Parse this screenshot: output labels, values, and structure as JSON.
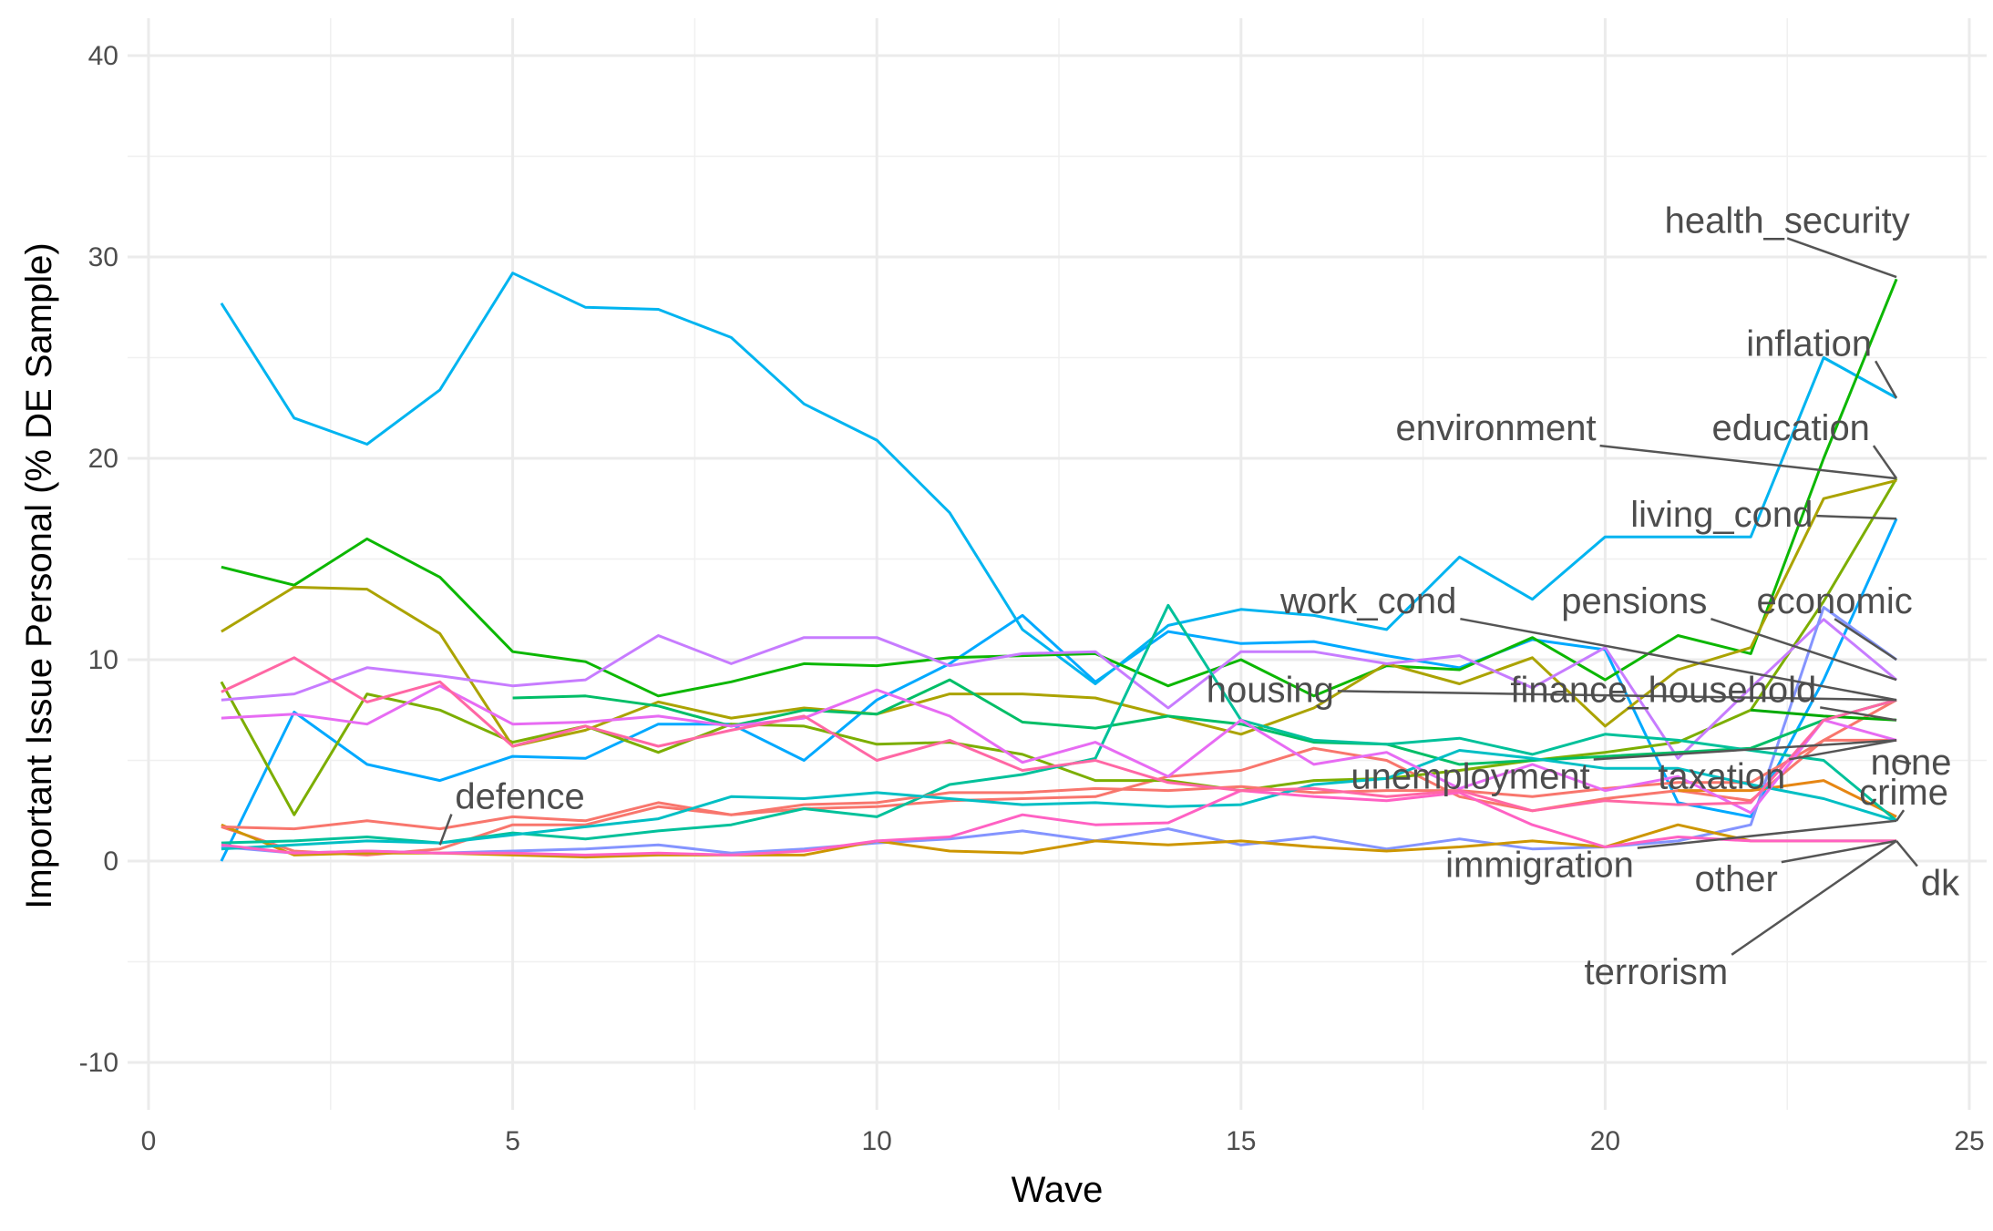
{
  "chart_data": {
    "type": "line",
    "title": "",
    "xlabel": "Wave",
    "ylabel": "Important Issue Personal (% DE Sample)",
    "xlim": [
      0,
      25
    ],
    "ylim": [
      -12,
      42
    ],
    "x_ticks": [
      0,
      5,
      10,
      15,
      20,
      25
    ],
    "y_ticks": [
      -10,
      0,
      10,
      20,
      30,
      40
    ],
    "grid": true,
    "legend": "none (direct labels)",
    "series": [
      {
        "name": "health_security",
        "color": "#00A9FF",
        "x": [
          24
        ],
        "y": [
          29
        ]
      },
      {
        "name": "inflation",
        "color": "#00BCD8",
        "x": [
          23,
          24
        ],
        "y": [
          25,
          23
        ]
      },
      {
        "name": "environment",
        "color": "#00B4F0",
        "x": [
          1,
          2,
          3,
          4,
          5,
          6,
          7,
          8,
          9,
          10,
          11,
          12,
          13,
          14,
          15,
          16,
          17,
          18,
          19,
          20,
          21,
          22,
          23,
          24
        ],
        "y": [
          27.7,
          22,
          20.7,
          23.4,
          29.2,
          27.5,
          27.4,
          26,
          22.7,
          20.9,
          17.3,
          11.5,
          8.8,
          11.7,
          12.5,
          12.2,
          11.5,
          15.1,
          13,
          16.1,
          16.1,
          16.1,
          25,
          23
        ]
      },
      {
        "name": "education",
        "color": "#7CAE00",
        "x": [
          1,
          2,
          3,
          4,
          5,
          6,
          7,
          8,
          9,
          10,
          11,
          12,
          13,
          14,
          15,
          16,
          17,
          18,
          19,
          20,
          21,
          22,
          23,
          24
        ],
        "y": [
          8.9,
          2.3,
          8.3,
          7.5,
          5.9,
          6.7,
          5.4,
          6.8,
          6.7,
          5.8,
          5.9,
          5.3,
          4,
          4,
          3.5,
          4,
          4.1,
          4.5,
          5,
          5.4,
          5.9,
          7.5,
          12.9,
          19
        ]
      },
      {
        "name": "living_cond",
        "color": "#0CB702",
        "x": [
          1,
          2,
          3,
          4,
          5,
          6,
          7,
          8,
          9,
          10,
          11,
          12,
          13,
          14,
          15,
          16,
          17,
          18,
          19,
          20,
          21,
          22,
          23,
          24
        ],
        "y": [
          14.6,
          13.7,
          16,
          14.1,
          10.4,
          9.9,
          8.2,
          8.9,
          9.8,
          9.7,
          10.1,
          10.2,
          10.3,
          8.7,
          10,
          8.2,
          9.7,
          9.5,
          11.1,
          9,
          11.2,
          10.3,
          20,
          28.9
        ]
      },
      {
        "name": "work_cond",
        "color": "#ABA300",
        "x": [
          1,
          2,
          3,
          4,
          5,
          6,
          7,
          8,
          9,
          10,
          11,
          12,
          13,
          14,
          15,
          16,
          17,
          18,
          19,
          20,
          21,
          22,
          23,
          24
        ],
        "y": [
          11.4,
          13.6,
          13.5,
          11.3,
          5.7,
          6.5,
          7.9,
          7.1,
          7.6,
          7.3,
          8.3,
          8.3,
          8.1,
          7.2,
          6.3,
          7.6,
          9.8,
          8.8,
          10.1,
          6.7,
          9.5,
          10.6,
          18,
          18.9
        ]
      },
      {
        "name": "pensions",
        "color": "#C77CFF",
        "x": [
          1,
          2,
          3,
          4,
          5,
          6,
          7,
          8,
          9,
          10,
          11,
          12,
          13,
          14,
          15,
          16,
          17,
          18,
          19,
          20,
          21,
          22,
          23,
          24
        ],
        "y": [
          8,
          8.3,
          9.6,
          9.2,
          8.7,
          9,
          11.2,
          9.8,
          11.1,
          11.1,
          9.7,
          10.3,
          10.4,
          7.6,
          10.4,
          10.4,
          9.8,
          10.2,
          8.6,
          10.6,
          5.1,
          8.6,
          12,
          9
        ]
      },
      {
        "name": "economic",
        "color": "#8494FF",
        "x": [
          1,
          2,
          3,
          4,
          5,
          6,
          7,
          8,
          9,
          10,
          11,
          12,
          13,
          14,
          15,
          16,
          17,
          18,
          19,
          20,
          21,
          22,
          23,
          24
        ],
        "y": [
          0.7,
          0.4,
          0.5,
          0.4,
          0.5,
          0.6,
          0.8,
          0.4,
          0.6,
          0.9,
          1.1,
          1.5,
          1,
          1.6,
          0.8,
          1.2,
          0.6,
          1.1,
          0.6,
          0.7,
          1,
          1.8,
          12.6,
          10
        ]
      },
      {
        "name": "housing",
        "color": "#00BE67",
        "x": [
          5,
          6,
          7,
          8,
          9,
          10,
          11,
          12,
          13,
          14,
          15,
          16,
          17,
          18,
          19,
          20,
          21,
          22,
          23,
          24
        ],
        "y": [
          8.1,
          8.2,
          7.7,
          6.7,
          7.5,
          7.3,
          9,
          6.9,
          6.6,
          7.2,
          6.8,
          5.9,
          5.8,
          4.8,
          5,
          5.2,
          5.4,
          5.6,
          7,
          8
        ]
      },
      {
        "name": "finance_household",
        "color": "#00A900",
        "x": [
          22,
          23,
          24
        ],
        "y": [
          7.5,
          7.2,
          7
        ]
      },
      {
        "name": "unemployment",
        "color": "#CD9600",
        "x": [
          1,
          2,
          3,
          4,
          5,
          6,
          7,
          8,
          9,
          10,
          11,
          12,
          13,
          14,
          15,
          16,
          17,
          18,
          19,
          20,
          21,
          22,
          23,
          24
        ],
        "y": [
          1.8,
          0.3,
          0.4,
          0.4,
          0.3,
          0.2,
          0.3,
          0.3,
          0.3,
          1,
          0.5,
          0.4,
          1,
          0.8,
          1,
          0.7,
          0.5,
          0.7,
          1,
          0.7,
          1.8,
          1,
          1,
          1
        ]
      },
      {
        "name": "taxation",
        "color": "#E68613",
        "x": [
          21,
          22,
          23,
          24
        ],
        "y": [
          3.5,
          3.5,
          4,
          2.2
        ]
      },
      {
        "name": "none",
        "color": "#00C19A",
        "x": [
          1,
          2,
          3,
          4,
          5,
          6,
          7,
          8,
          9,
          10,
          11,
          12,
          13,
          14,
          15,
          16,
          17,
          18,
          19,
          20,
          21,
          22,
          23,
          24
        ],
        "y": [
          0.9,
          1,
          1.2,
          0.9,
          1.4,
          1.1,
          1.5,
          1.8,
          2.6,
          2.2,
          3.8,
          4.3,
          5.1,
          12.7,
          7,
          6,
          5.8,
          6.1,
          5.3,
          6.3,
          6,
          5.5,
          5,
          2
        ]
      },
      {
        "name": "crime",
        "color": "#F8766D",
        "x": [
          1,
          2,
          3,
          4,
          5,
          6,
          7,
          8,
          9,
          10,
          11,
          12,
          13,
          14,
          15,
          16,
          17,
          18,
          19,
          20,
          21,
          22,
          23,
          24
        ],
        "y": [
          1.7,
          1.6,
          2,
          1.6,
          2.2,
          2,
          2.9,
          2.3,
          2.8,
          2.9,
          3.4,
          3.4,
          3.6,
          3.5,
          3.7,
          3.4,
          3.5,
          3.5,
          3.2,
          3.6,
          3.9,
          3.9,
          6,
          6
        ]
      },
      {
        "name": "immigration",
        "color": "#00BFC4",
        "x": [
          1,
          2,
          3,
          4,
          5,
          6,
          7,
          8,
          9,
          10,
          11,
          12,
          13,
          14,
          15,
          16,
          17,
          18,
          19,
          20,
          21,
          22,
          23,
          24
        ],
        "y": [
          0.6,
          0.8,
          1,
          0.9,
          1.3,
          1.7,
          2.1,
          3.2,
          3.1,
          3.4,
          3.1,
          2.8,
          2.9,
          2.7,
          2.8,
          3.8,
          4.1,
          5.5,
          5.1,
          4.6,
          4.6,
          3.8,
          3.1,
          2
        ]
      },
      {
        "name": "other",
        "color": "#FF61C3",
        "x": [
          1,
          2,
          3,
          4,
          5,
          6,
          7,
          8,
          9,
          10,
          11,
          12,
          13,
          14,
          15,
          16,
          17,
          18,
          19,
          20,
          21,
          22,
          23,
          24
        ],
        "y": [
          0.8,
          0.4,
          0.5,
          0.4,
          0.4,
          0.3,
          0.4,
          0.3,
          0.5,
          1,
          1.2,
          2.3,
          1.8,
          1.9,
          3.5,
          3.2,
          3,
          3.4,
          1.8,
          0.7,
          1.2,
          1,
          1,
          1
        ]
      },
      {
        "name": "dk",
        "color": "#E76BF3",
        "x": [
          1,
          2,
          3,
          4,
          5,
          6,
          7,
          8,
          9,
          10,
          11,
          12,
          13,
          14,
          15,
          16,
          17,
          18,
          19,
          20,
          21,
          22,
          23,
          24
        ],
        "y": [
          7.1,
          7.3,
          6.8,
          8.7,
          6.8,
          6.9,
          7.2,
          6.7,
          7.1,
          8.5,
          7.2,
          4.9,
          5.9,
          4.2,
          7,
          4.8,
          5.4,
          3.6,
          4.8,
          3.5,
          4.2,
          2.4,
          7,
          6
        ]
      },
      {
        "name": "terrorism",
        "color": "#FF67A4",
        "x": [
          1,
          2,
          3,
          4,
          5,
          6,
          7,
          8,
          9,
          10,
          11,
          12,
          13,
          14,
          15,
          16,
          17,
          18,
          19,
          20,
          21,
          22,
          23,
          24
        ],
        "y": [
          8.4,
          10.1,
          7.9,
          8.9,
          5.7,
          6.7,
          5.7,
          6.5,
          7.2,
          5,
          6,
          4.5,
          5,
          3.9,
          3.5,
          3.6,
          3.2,
          3.5,
          2.5,
          3,
          2.8,
          2.9,
          7,
          8
        ]
      },
      {
        "name": "defence",
        "color": "#0CB7A9",
        "x": [
          4
        ],
        "y": [
          0.8
        ]
      }
    ],
    "extra_lines": [
      {
        "color": "#00A9FF",
        "x": [
          1,
          2,
          3,
          4,
          5,
          6,
          7,
          8,
          9,
          10,
          11,
          12,
          13,
          14,
          15,
          16,
          17,
          18,
          19,
          20,
          21,
          22,
          23,
          24
        ],
        "y": [
          0,
          7.4,
          4.8,
          4,
          5.2,
          5.1,
          6.8,
          6.8,
          5,
          8,
          9.8,
          12.2,
          8.9,
          11.4,
          10.8,
          10.9,
          10.2,
          9.6,
          11,
          10.5,
          2.9,
          2.2,
          9,
          17
        ]
      },
      {
        "color": "#F8766D",
        "x": [
          1,
          2,
          3,
          4,
          5,
          6,
          7,
          8,
          9,
          10,
          11,
          12,
          13,
          14,
          15,
          16,
          17,
          18,
          19,
          20,
          21,
          22,
          23,
          24
        ],
        "y": [
          1.7,
          0.5,
          0.3,
          0.6,
          1.8,
          1.8,
          2.7,
          2.3,
          2.6,
          2.7,
          3,
          3.1,
          3.2,
          4.2,
          4.5,
          5.6,
          5,
          3.2,
          2.5,
          3.1,
          3.5,
          3,
          6,
          8
        ]
      }
    ],
    "labels": [
      {
        "text": "health_security",
        "x": 22.5,
        "y": 31.2,
        "anchor": "middle",
        "target": [
          24,
          29
        ]
      },
      {
        "text": "inflation",
        "x": 22.8,
        "y": 25.1,
        "anchor": "middle",
        "target": [
          24,
          23
        ]
      },
      {
        "text": "environment",
        "x": 18.5,
        "y": 20.9,
        "anchor": "middle",
        "target": [
          24,
          19
        ]
      },
      {
        "text": "education",
        "x": 22.55,
        "y": 20.9,
        "anchor": "middle",
        "target": [
          24,
          19
        ]
      },
      {
        "text": "living_cond",
        "x": 21.6,
        "y": 16.6,
        "anchor": "middle",
        "target": [
          24,
          17
        ]
      },
      {
        "text": "work_cond",
        "x": 16.75,
        "y": 12.3,
        "anchor": "middle",
        "target": [
          24,
          8
        ]
      },
      {
        "text": "pensions",
        "x": 20.4,
        "y": 12.3,
        "anchor": "middle",
        "target": [
          24,
          9
        ]
      },
      {
        "text": "economic",
        "x": 23.15,
        "y": 12.3,
        "anchor": "middle",
        "target": [
          24,
          10
        ]
      },
      {
        "text": "housing",
        "x": 15.4,
        "y": 7.9,
        "anchor": "middle",
        "target": [
          24,
          8
        ]
      },
      {
        "text": "finance_household",
        "x": 20.8,
        "y": 7.9,
        "anchor": "middle",
        "target": [
          24,
          7
        ]
      },
      {
        "text": "unemployment",
        "x": 18.15,
        "y": 3.6,
        "anchor": "middle",
        "target": [
          24,
          6
        ]
      },
      {
        "text": "taxation",
        "x": 21.6,
        "y": 3.6,
        "anchor": "middle",
        "target": [
          24,
          6
        ]
      },
      {
        "text": "none",
        "x": 24.2,
        "y": 4.3,
        "anchor": "middle",
        "target": [
          24,
          5
        ]
      },
      {
        "text": "crime",
        "x": 24.1,
        "y": 2.8,
        "anchor": "middle",
        "target": [
          24,
          2
        ]
      },
      {
        "text": "immigration",
        "x": 19.1,
        "y": -0.8,
        "anchor": "middle",
        "target": [
          24,
          2
        ]
      },
      {
        "text": "other",
        "x": 21.8,
        "y": -1.5,
        "anchor": "middle",
        "target": [
          24,
          1
        ]
      },
      {
        "text": "dk",
        "x": 24.6,
        "y": -1.7,
        "anchor": "middle",
        "target": [
          24,
          1
        ]
      },
      {
        "text": "terrorism",
        "x": 20.7,
        "y": -6.1,
        "anchor": "middle",
        "target": [
          24,
          1
        ]
      },
      {
        "text": "defence",
        "x": 5.1,
        "y": 2.6,
        "anchor": "middle",
        "target": [
          4,
          0.8
        ]
      }
    ]
  }
}
